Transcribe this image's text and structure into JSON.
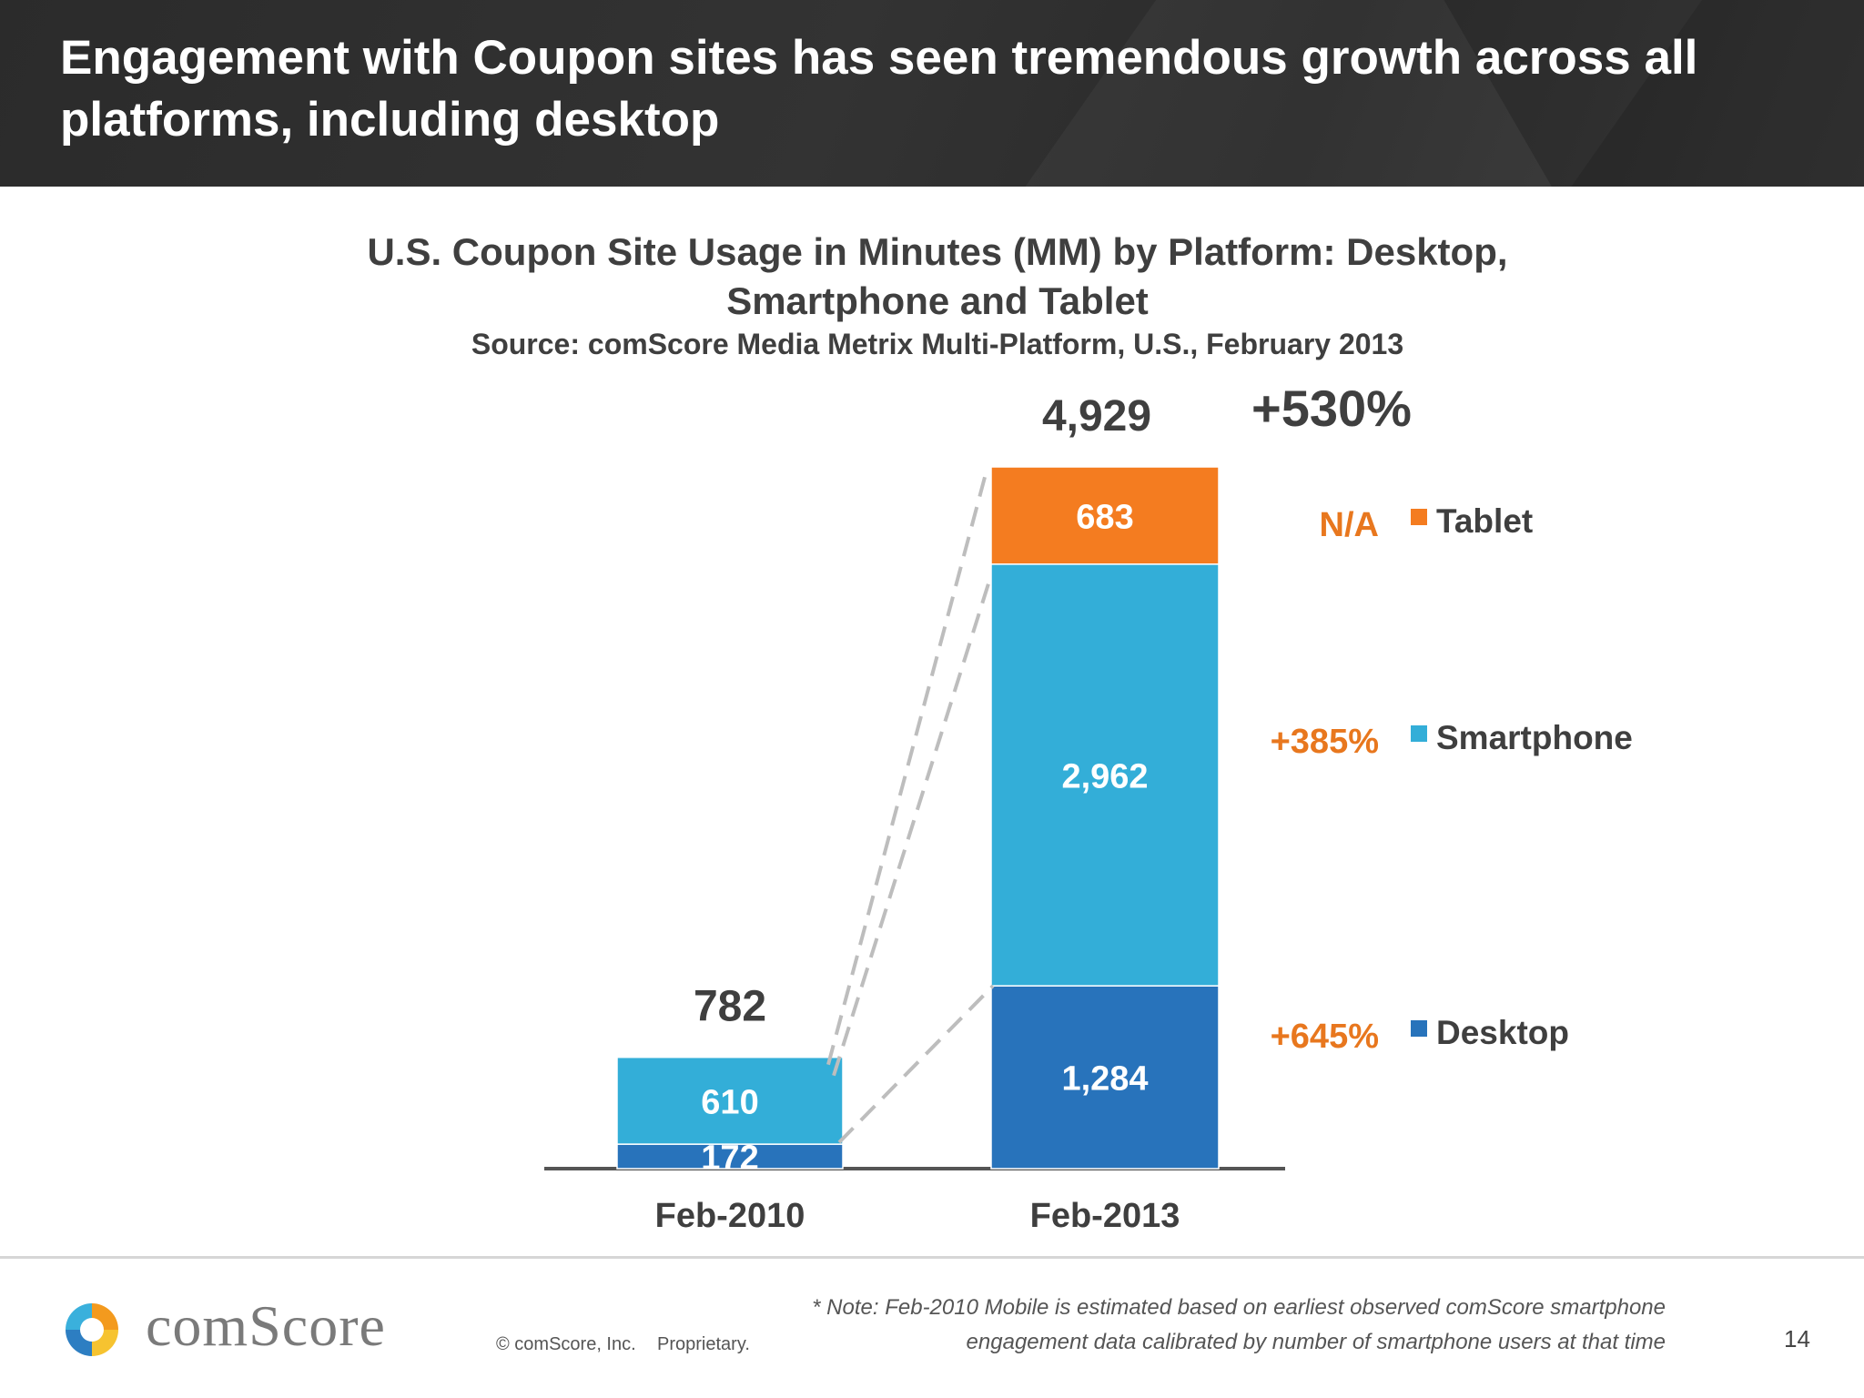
{
  "headline": "Engagement with Coupon sites has seen tremendous growth across all platforms, including desktop",
  "chart_data": {
    "type": "bar",
    "stacked": true,
    "title": "U.S. Coupon Site Usage  in Minutes (MM) by Platform: Desktop, Smartphone and Tablet",
    "source": "Source: comScore Media Metrix Multi-Platform, U.S., February 2013",
    "categories": [
      "Feb-2010",
      "Feb-2013"
    ],
    "series": [
      {
        "name": "Desktop",
        "values": [
          172,
          1284
        ],
        "labels": [
          "172",
          "1,284"
        ],
        "growth": "+645%",
        "color": "#2873bb"
      },
      {
        "name": "Smartphone",
        "values": [
          610,
          2962
        ],
        "labels": [
          "610",
          "2,962"
        ],
        "growth": "+385%",
        "color": "#33aed8"
      },
      {
        "name": "Tablet",
        "values": [
          0,
          683
        ],
        "labels": [
          "",
          "683"
        ],
        "growth": "N/A",
        "color": "#f47c20"
      }
    ],
    "totals": [
      "782",
      "4,929"
    ],
    "total_growth": "+530%",
    "legend_position": "right",
    "ylim": [
      0,
      4929
    ]
  },
  "colors": {
    "growth_text": "#e8771e",
    "header_bg": "#2f2f2f",
    "axis": "#555555",
    "connector": "#bdbdbd"
  },
  "footer": {
    "logo": "comScore",
    "copyright": "© comScore, Inc.",
    "proprietary": "Proprietary.",
    "note_line1": "* Note: Feb-2010 Mobile is estimated based on earliest observed comScore smartphone",
    "note_line2": "engagement data calibrated by number of smartphone users at that time",
    "page_number": "14"
  }
}
